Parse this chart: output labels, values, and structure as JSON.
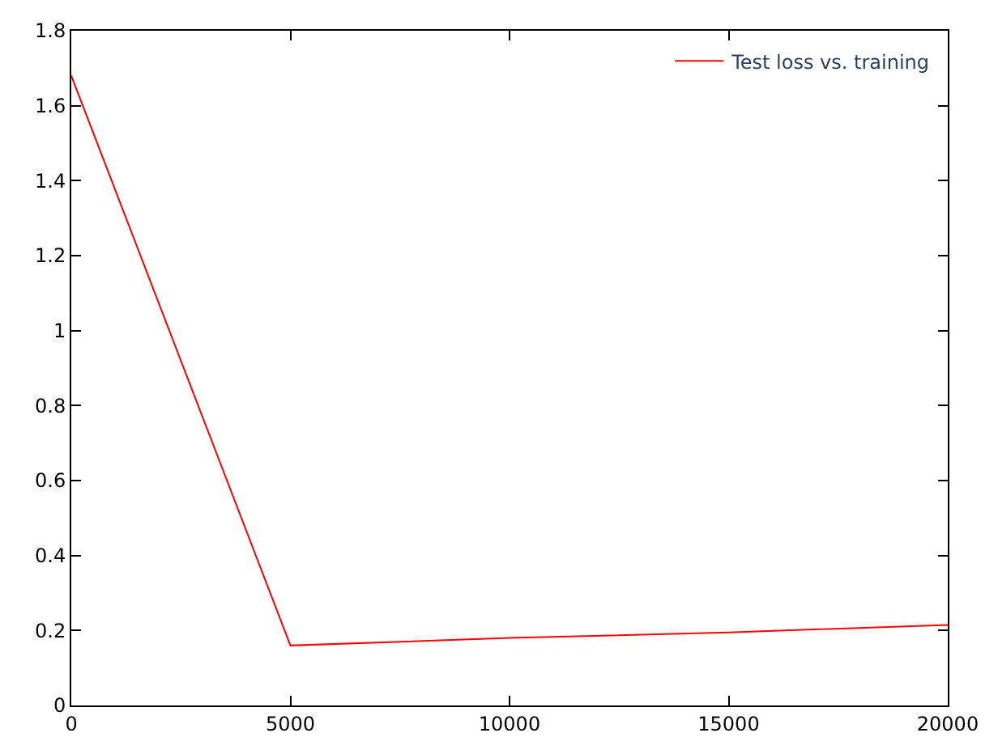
{
  "chart_data": {
    "type": "line",
    "x": [
      0,
      5000,
      10000,
      15000,
      20000
    ],
    "series": [
      {
        "name": "Test loss vs. training",
        "color": "#ff0000",
        "values": [
          1.68,
          0.16,
          0.18,
          0.195,
          0.215
        ]
      }
    ],
    "xlim": [
      0,
      20000
    ],
    "xticks": [
      0,
      5000,
      10000,
      15000,
      20000
    ],
    "ylim": [
      0,
      1.8
    ],
    "yticks": [
      0,
      0.2,
      0.4,
      0.6,
      0.8,
      1,
      1.2,
      1.4,
      1.6,
      1.8
    ],
    "legend": "top right",
    "marker": "none",
    "line_style": "solid"
  }
}
